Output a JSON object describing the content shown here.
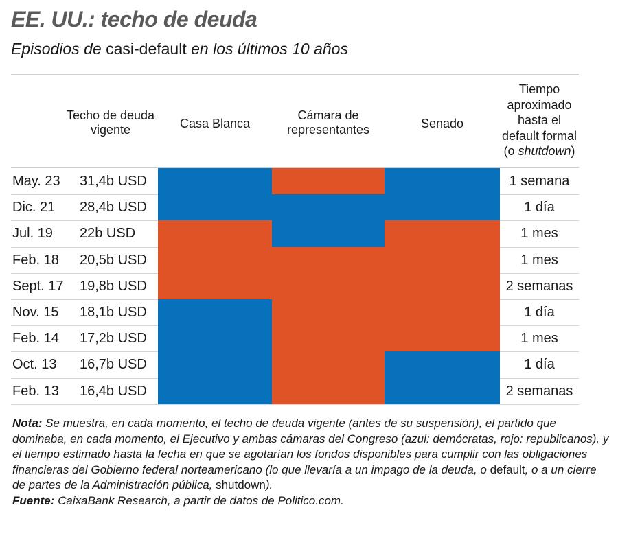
{
  "header": {
    "title": "EE. UU.: techo de deuda",
    "subtitle_part1": "Episodios de ",
    "subtitle_part2": "casi-default",
    "subtitle_part3": " en los últimos 10 años"
  },
  "colors": {
    "democrat": "#0771bb",
    "republican": "#e05326",
    "rule": "#c9cfcf"
  },
  "chart_data": {
    "type": "table",
    "title": "EE. UU.: techo de deuda",
    "subtitle": "Episodios de casi-default en los últimos 10 años",
    "columns": {
      "date": "",
      "ceiling_line1": "Techo de deuda",
      "ceiling_line2": "vigente",
      "white_house": "Casa Blanca",
      "house_line1": "Cámara de",
      "house_line2": "representantes",
      "senate": "Senado",
      "time_line1": "Tiempo",
      "time_line2": "aproximado",
      "time_line3": "hasta el",
      "time_line4": "default formal",
      "time_line5_pre": "(o ",
      "time_line5_it": "shutdown",
      "time_line5_post": ")"
    },
    "legend": {
      "D": "demócratas (azul)",
      "R": "republicanos (rojo)"
    },
    "rows": [
      {
        "date": "May. 23",
        "ceiling": "31,4b USD",
        "white_house": "D",
        "house": "R",
        "senate": "D",
        "time": "1 semana"
      },
      {
        "date": "Dic. 21",
        "ceiling": "28,4b USD",
        "white_house": "D",
        "house": "D",
        "senate": "D",
        "time": "1 día"
      },
      {
        "date": "Jul. 19",
        "ceiling": "22b USD",
        "white_house": "R",
        "house": "D",
        "senate": "R",
        "time": "1 mes"
      },
      {
        "date": "Feb. 18",
        "ceiling": "20,5b USD",
        "white_house": "R",
        "house": "R",
        "senate": "R",
        "time": "1 mes"
      },
      {
        "date": "Sept. 17",
        "ceiling": "19,8b USD",
        "white_house": "R",
        "house": "R",
        "senate": "R",
        "time": "2 semanas"
      },
      {
        "date": "Nov. 15",
        "ceiling": "18,1b USD",
        "white_house": "D",
        "house": "R",
        "senate": "R",
        "time": "1 día"
      },
      {
        "date": "Feb. 14",
        "ceiling": "17,2b USD",
        "white_house": "D",
        "house": "R",
        "senate": "R",
        "time": "1 mes"
      },
      {
        "date": "Oct. 13",
        "ceiling": "16,7b USD",
        "white_house": "D",
        "house": "R",
        "senate": "D",
        "time": "1 día"
      },
      {
        "date": "Feb. 13",
        "ceiling": "16,4b USD",
        "white_house": "D",
        "house": "R",
        "senate": "D",
        "time": "2 semanas"
      }
    ]
  },
  "footer": {
    "note_label": "Nota:",
    "note_text_1": " Se muestra, en cada momento, el techo de deuda vigente (antes de su suspensión), el partido que dominaba, en cada momento, el Ejecutivo y ambas cámaras del Congreso (azul: demócratas, rojo: republicanos), y el tiempo estimado hasta la fecha en que se agotarían los fondos disponibles para cumplir con las obligaciones financieras del Gobierno federal norteamericano (lo que llevaría a un impago de la deuda, o ",
    "note_up_1": "default",
    "note_text_2": ", o a un cierre de partes de la Administración pública, ",
    "note_up_2": "shutdown",
    "note_text_3": ").",
    "source_label": "Fuente:",
    "source_text": " CaixaBank Research, a partir de datos de Politico.com."
  }
}
